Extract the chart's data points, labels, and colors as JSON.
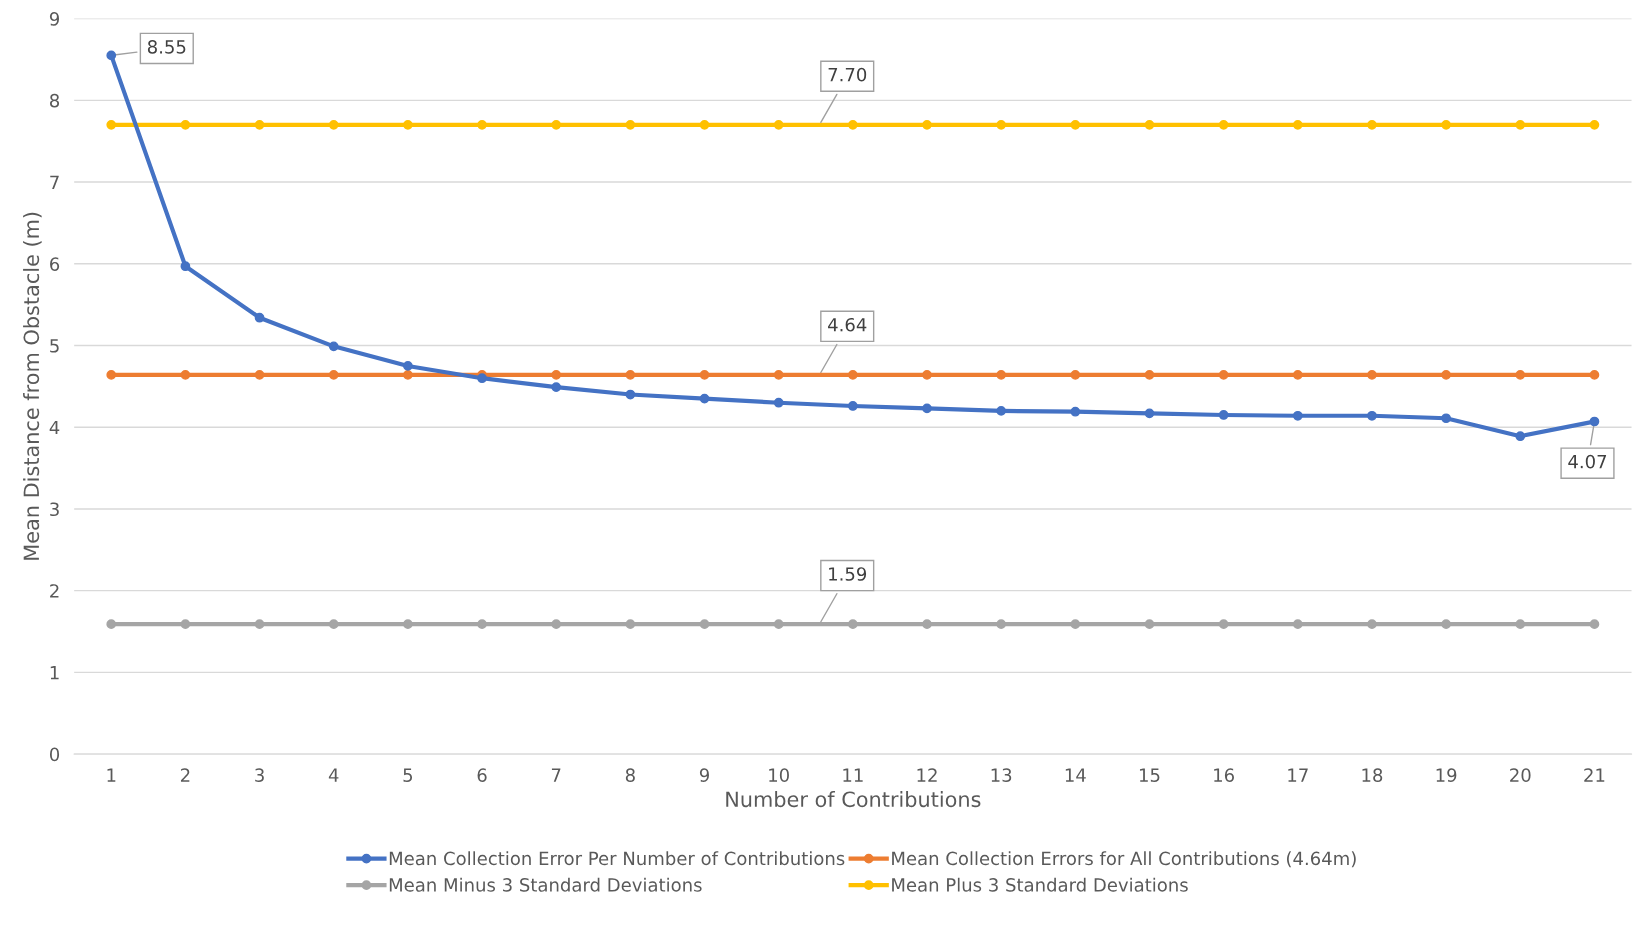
{
  "chart_data": {
    "type": "line",
    "xlabel": "Number of Contributions",
    "ylabel": "Mean Distance from Obstacle (m)",
    "categories": [
      "1",
      "2",
      "3",
      "4",
      "5",
      "6",
      "7",
      "8",
      "9",
      "10",
      "11",
      "12",
      "13",
      "14",
      "15",
      "16",
      "17",
      "18",
      "19",
      "20",
      "21"
    ],
    "ylim": [
      0,
      9
    ],
    "yticks": [
      0,
      1,
      2,
      3,
      4,
      5,
      6,
      7,
      8,
      9
    ],
    "grid": "y",
    "legend": "bottom",
    "marker": "circle",
    "line_style": "solid",
    "series": [
      {
        "name": "Mean Collection Error Per Number of Contributions",
        "color": "#4472c4",
        "values": [
          8.55,
          5.97,
          5.34,
          4.99,
          4.75,
          4.6,
          4.49,
          4.4,
          4.35,
          4.3,
          4.26,
          4.23,
          4.2,
          4.19,
          4.17,
          4.15,
          4.14,
          4.14,
          4.11,
          3.89,
          4.07
        ],
        "value_labels": [
          "8.55",
          null,
          null,
          null,
          null,
          null,
          null,
          null,
          null,
          null,
          null,
          null,
          null,
          null,
          null,
          null,
          null,
          null,
          null,
          null,
          "4.07"
        ]
      },
      {
        "name": "Mean Collection Errors for All Contributions (4.64m)",
        "color": "#ed7d31",
        "values": [
          4.64,
          4.64,
          4.64,
          4.64,
          4.64,
          4.64,
          4.64,
          4.64,
          4.64,
          4.64,
          4.64,
          4.64,
          4.64,
          4.64,
          4.64,
          4.64,
          4.64,
          4.64,
          4.64,
          4.64,
          4.64
        ],
        "value_labels": [
          null,
          null,
          null,
          null,
          null,
          null,
          null,
          null,
          null,
          null,
          "4.64",
          null,
          null,
          null,
          null,
          null,
          null,
          null,
          null,
          null,
          null
        ]
      },
      {
        "name": "Mean Minus 3 Standard Deviations",
        "color": "#a5a5a5",
        "values": [
          1.59,
          1.59,
          1.59,
          1.59,
          1.59,
          1.59,
          1.59,
          1.59,
          1.59,
          1.59,
          1.59,
          1.59,
          1.59,
          1.59,
          1.59,
          1.59,
          1.59,
          1.59,
          1.59,
          1.59,
          1.59
        ],
        "value_labels": [
          null,
          null,
          null,
          null,
          null,
          null,
          null,
          null,
          null,
          null,
          "1.59",
          null,
          null,
          null,
          null,
          null,
          null,
          null,
          null,
          null,
          null
        ]
      },
      {
        "name": "Mean Plus 3 Standard Deviations",
        "color": "#ffc000",
        "values": [
          7.7,
          7.7,
          7.7,
          7.7,
          7.7,
          7.7,
          7.7,
          7.7,
          7.7,
          7.7,
          7.7,
          7.7,
          7.7,
          7.7,
          7.7,
          7.7,
          7.7,
          7.7,
          7.7,
          7.7,
          7.7
        ],
        "value_labels": [
          null,
          null,
          null,
          null,
          null,
          null,
          null,
          null,
          null,
          null,
          "7.70",
          null,
          null,
          null,
          null,
          null,
          null,
          null,
          null,
          null,
          null
        ]
      }
    ]
  }
}
